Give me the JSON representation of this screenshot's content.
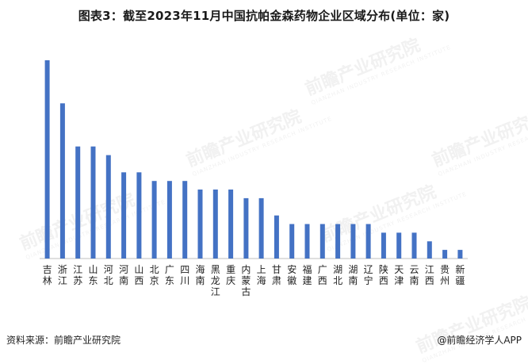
{
  "title": "图表3：截至2023年11月中国抗帕金森药物企业区域分布(单位：家)",
  "footer": {
    "source": "资料来源：前瞻产业研究院",
    "brand": "@前瞻经济学人APP"
  },
  "watermark": {
    "text": "前瞻产业研究院",
    "sub": "QIANZHAN INDUSTRY RESEARCH INSTITUTE"
  },
  "colors": {
    "bar": "#4472c4",
    "axis": "#bfbfbf"
  },
  "chart_data": {
    "type": "bar",
    "categories": [
      "吉林",
      "浙江",
      "江苏",
      "山东",
      "河北",
      "河南",
      "山西",
      "北京",
      "广东",
      "四川",
      "海南",
      "黑龙江",
      "重庆",
      "内蒙古",
      "上海",
      "甘肃",
      "安徽",
      "福建",
      "广西",
      "湖北",
      "湖南",
      "辽宁",
      "陕西",
      "天津",
      "云南",
      "江西",
      "贵州",
      "新疆"
    ],
    "values": [
      23,
      18,
      13,
      13,
      12,
      10,
      10,
      9,
      9,
      9,
      8,
      8,
      8,
      7,
      7,
      5,
      4,
      4,
      4,
      4,
      4,
      4,
      3,
      3,
      3,
      2,
      1,
      1
    ],
    "title": "图表3：截至2023年11月中国抗帕金森药物企业区域分布(单位：家)",
    "xlabel": "",
    "ylabel": "",
    "ylim": [
      0,
      23
    ],
    "grid": false,
    "legend": "none"
  }
}
